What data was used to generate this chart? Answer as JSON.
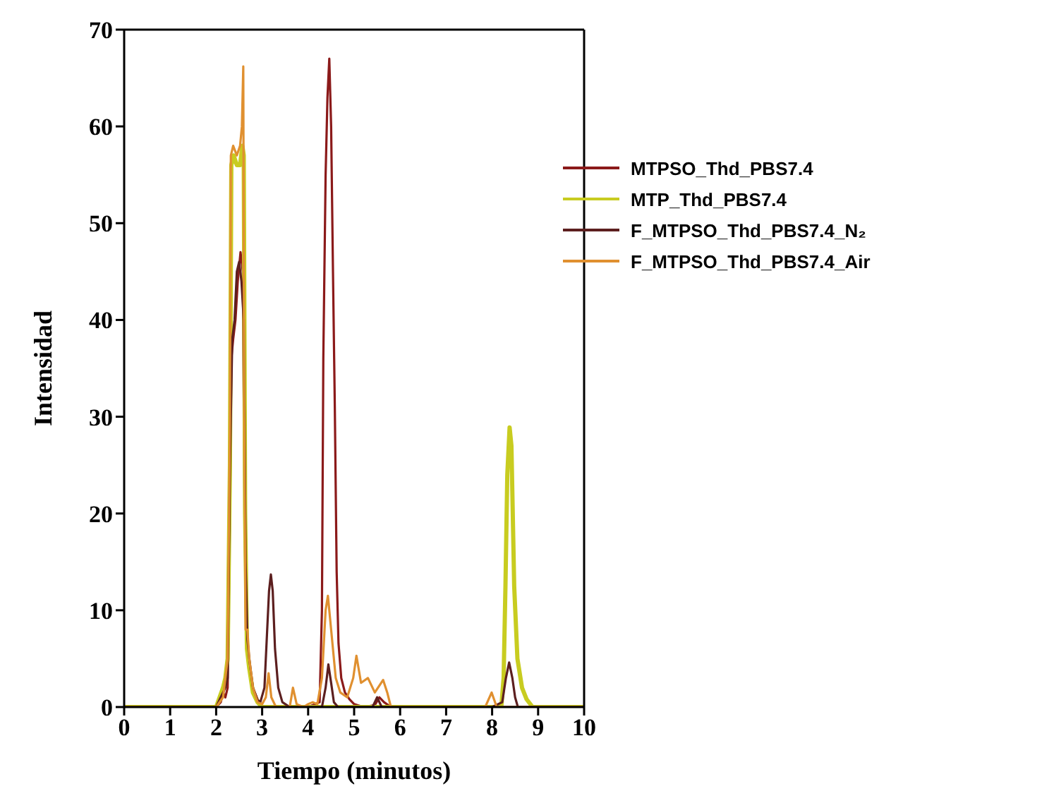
{
  "chart_data": {
    "type": "line",
    "xlabel": "Tiempo (minutos)",
    "ylabel": "Intensidad",
    "xlim": [
      0,
      10
    ],
    "ylim": [
      0,
      70
    ],
    "xticks": [
      0,
      1,
      2,
      3,
      4,
      5,
      6,
      7,
      8,
      9,
      10
    ],
    "yticks": [
      0,
      10,
      20,
      30,
      40,
      50,
      60,
      70
    ],
    "legend": "top right",
    "grid": false,
    "marker": "none",
    "line_style": "solid",
    "series": [
      {
        "name": "MTPSO_Thd_PBS7.4",
        "color": "#8b1a1a",
        "x": [
          0,
          2.0,
          2.1,
          2.15,
          2.2,
          2.25,
          2.3,
          2.33,
          2.37,
          2.42,
          2.47,
          2.53,
          2.58,
          2.62,
          2.65,
          2.7,
          2.8,
          2.9,
          3.0,
          3.5,
          4.0,
          4.25,
          4.3,
          4.33,
          4.38,
          4.42,
          4.46,
          4.5,
          4.54,
          4.58,
          4.62,
          4.66,
          4.72,
          4.8,
          4.9,
          5.0,
          5.2,
          5.45,
          5.55,
          5.65,
          5.8,
          7.0,
          10
        ],
        "values": [
          0,
          0,
          0.5,
          1.5,
          1,
          2,
          20,
          36,
          38,
          40,
          44,
          47,
          45,
          20,
          8,
          5,
          2,
          0.8,
          0,
          0,
          0,
          0.5,
          10,
          36,
          55,
          63,
          67,
          60,
          45,
          31,
          14,
          6.6,
          3,
          1.5,
          0.8,
          0.3,
          0,
          0.2,
          1,
          0.5,
          0,
          0,
          0
        ]
      },
      {
        "name": "MTP_Thd_PBS7.4",
        "color": "#c8cc20",
        "x": [
          0,
          2.0,
          2.15,
          2.2,
          2.25,
          2.3,
          2.33,
          2.38,
          2.45,
          2.52,
          2.57,
          2.6,
          2.63,
          2.67,
          2.72,
          2.8,
          2.9,
          3.0,
          5,
          8.2,
          8.25,
          8.29,
          8.33,
          8.38,
          8.42,
          8.48,
          8.55,
          8.65,
          8.75,
          8.88,
          10
        ],
        "values": [
          0,
          0,
          2,
          3,
          5,
          25,
          56,
          57,
          56,
          56,
          58,
          57,
          20,
          6,
          4,
          1.5,
          0.5,
          0,
          0,
          0,
          3,
          12.5,
          24,
          28.9,
          27,
          12.5,
          5,
          2,
          0.8,
          0,
          0
        ]
      },
      {
        "name": "F_MTPSO_Thd_PBS7.4_N₂",
        "color": "#5c1f1f",
        "x": [
          0,
          2.0,
          2.1,
          2.2,
          2.25,
          2.3,
          2.35,
          2.4,
          2.45,
          2.5,
          2.55,
          2.6,
          2.64,
          2.68,
          2.72,
          2.8,
          2.9,
          2.96,
          3.05,
          3.1,
          3.15,
          3.19,
          3.23,
          3.28,
          3.35,
          3.44,
          3.6,
          4.3,
          4.38,
          4.44,
          4.5,
          4.56,
          4.65,
          5.4,
          5.5,
          5.6,
          7.9,
          8.0,
          8.22,
          8.3,
          8.37,
          8.44,
          8.5,
          8.56,
          10
        ],
        "values": [
          0,
          0,
          1,
          2,
          3,
          25,
          38,
          40,
          45,
          46,
          44,
          40,
          15,
          7,
          5,
          2,
          0.7,
          0.5,
          2,
          7,
          12,
          13.7,
          12,
          6,
          2,
          0.5,
          0,
          0,
          2,
          4.4,
          2.5,
          0.5,
          0,
          0,
          1,
          0,
          0,
          0,
          0.5,
          3,
          4.6,
          3,
          1,
          0,
          0
        ]
      },
      {
        "name": "F_MTPSO_Thd_PBS7.4_Air",
        "color": "#e09030",
        "x": [
          0,
          2.0,
          2.15,
          2.2,
          2.25,
          2.3,
          2.32,
          2.37,
          2.45,
          2.52,
          2.56,
          2.59,
          2.61,
          2.64,
          2.68,
          2.72,
          2.8,
          2.9,
          3.0,
          3.08,
          3.14,
          3.2,
          3.3,
          3.6,
          3.67,
          3.75,
          3.9,
          4.0,
          4.1,
          4.2,
          4.3,
          4.38,
          4.43,
          4.5,
          4.6,
          4.7,
          4.85,
          4.98,
          5.05,
          5.15,
          5.3,
          5.45,
          5.63,
          5.72,
          5.8,
          7.85,
          7.99,
          8.1,
          10
        ],
        "values": [
          0,
          0,
          1,
          3,
          5,
          30,
          57,
          58,
          57,
          58,
          60,
          66.2,
          30,
          8,
          8,
          5,
          2,
          0.5,
          0.3,
          1,
          3.5,
          1,
          0,
          0,
          2,
          0.3,
          0,
          0.3,
          0.5,
          0.3,
          3,
          10,
          11.5,
          8,
          3,
          1.5,
          1,
          3,
          5.3,
          2.5,
          3,
          1.5,
          2.8,
          1.5,
          0,
          0,
          1.5,
          0,
          0
        ]
      }
    ]
  }
}
